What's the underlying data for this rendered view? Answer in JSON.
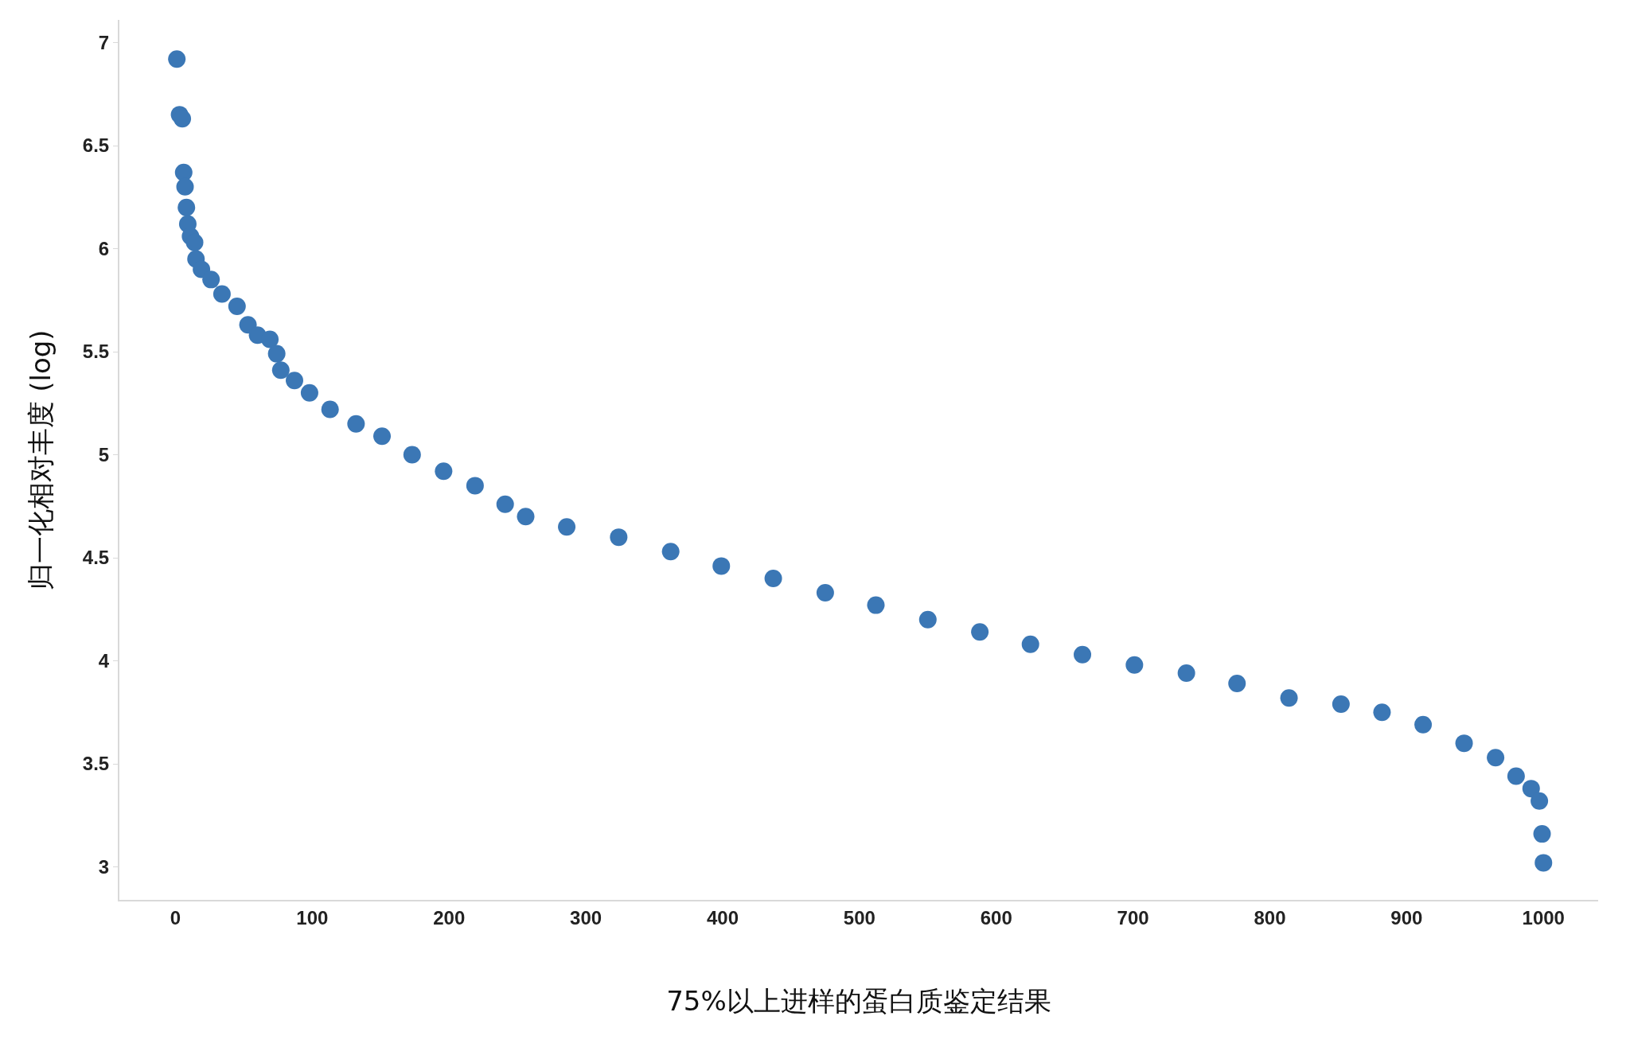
{
  "chart_data": {
    "type": "scatter",
    "xlabel": "75%以上进样的蛋白质鉴定结果",
    "ylabel": "归一化相对丰度 (log)",
    "marker": "circle",
    "grid": false,
    "xlim": [
      -41,
      1040
    ],
    "xticks": [
      0,
      100,
      200,
      300,
      400,
      500,
      600,
      700,
      800,
      900,
      1000
    ],
    "ylim": [
      2.84,
      7.11
    ],
    "yticks": [
      3,
      3.5,
      4,
      4.5,
      5,
      5.5,
      6,
      6.5,
      7
    ],
    "x": [
      1,
      3,
      5,
      6,
      7,
      8,
      9,
      11,
      14,
      15,
      19,
      26,
      34,
      45,
      53,
      60,
      69,
      74,
      77,
      87,
      98,
      113,
      132,
      151,
      173,
      196,
      219,
      241,
      256,
      286,
      324,
      362,
      399,
      437,
      475,
      512,
      550,
      588,
      625,
      663,
      701,
      739,
      776,
      814,
      852,
      882,
      912,
      942,
      965,
      980,
      991,
      997,
      999,
      1000
    ],
    "series": [
      {
        "color": "#3b77b5",
        "values": [
          6.92,
          6.65,
          6.63,
          6.37,
          6.3,
          6.2,
          6.12,
          6.06,
          6.03,
          5.95,
          5.9,
          5.85,
          5.78,
          5.72,
          5.63,
          5.58,
          5.56,
          5.49,
          5.41,
          5.36,
          5.3,
          5.22,
          5.15,
          5.09,
          5.0,
          4.92,
          4.85,
          4.76,
          4.7,
          4.65,
          4.6,
          4.53,
          4.46,
          4.4,
          4.33,
          4.27,
          4.2,
          4.14,
          4.08,
          4.03,
          3.98,
          3.94,
          3.89,
          3.82,
          3.79,
          3.75,
          3.69,
          3.6,
          3.53,
          3.44,
          3.38,
          3.32,
          3.16,
          3.02
        ]
      }
    ]
  }
}
